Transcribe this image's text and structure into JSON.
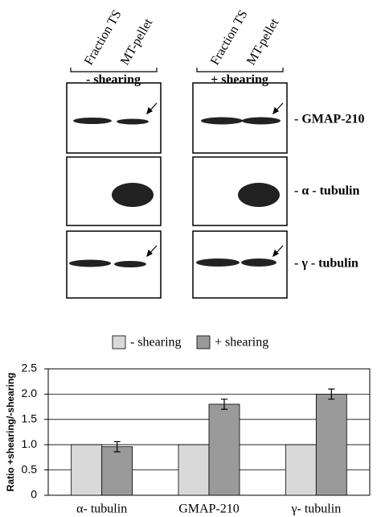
{
  "figure": {
    "columns": [
      "Fraction TS",
      "MT-pellet"
    ],
    "conditions": [
      "- shearing",
      "+ shearing"
    ],
    "rows": [
      "- GMAP-210",
      "- α - tubulin",
      "- γ - tubulin"
    ]
  },
  "chart_data": {
    "type": "bar",
    "y_label": "Ratio +shearing/-shearing",
    "categories": [
      "α- tubulin",
      "GMAP-210",
      "γ- tubulin"
    ],
    "series": [
      {
        "name": "- shearing",
        "color": "#d9d9d9",
        "values": [
          1,
          1,
          1
        ]
      },
      {
        "name": "+ shearing",
        "color": "#9a9a9a",
        "values": [
          0.96,
          1.8,
          2.0
        ],
        "errors": [
          0.1,
          0.1,
          0.1
        ]
      }
    ],
    "ylim": [
      0,
      2.5
    ],
    "yticks": [
      0,
      0.5,
      {
        "value": 1,
        "label": "1.0"
      },
      1.5,
      {
        "value": 2,
        "label": "2.0"
      },
      2.5
    ],
    "grid": true
  }
}
